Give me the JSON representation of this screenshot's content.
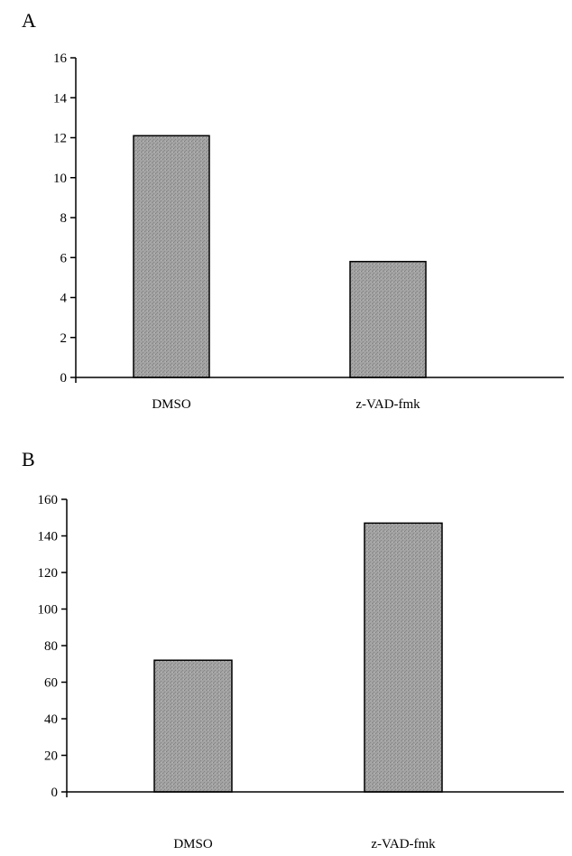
{
  "chart_data": [
    {
      "type": "bar",
      "panel_label": "A",
      "categories": [
        "DMSO",
        "z-VAD-fmk"
      ],
      "values": [
        12.1,
        5.8
      ],
      "ylim": [
        0,
        16
      ],
      "yticks": [
        "0",
        "2",
        "4",
        "6",
        "8",
        "10",
        "12",
        "14",
        "16"
      ],
      "title": "",
      "xlabel": "",
      "ylabel": "",
      "grid": false,
      "bar_color": "#9a9a9a"
    },
    {
      "type": "bar",
      "panel_label": "B",
      "categories": [
        "DMSO",
        "z-VAD-fmk"
      ],
      "values": [
        72,
        147
      ],
      "ylim": [
        0,
        160
      ],
      "yticks": [
        "0",
        "20",
        "40",
        "60",
        "80",
        "100",
        "120",
        "140",
        "160"
      ],
      "title": "",
      "xlabel": "",
      "ylabel": "",
      "grid": false,
      "bar_color": "#9a9a9a"
    }
  ]
}
